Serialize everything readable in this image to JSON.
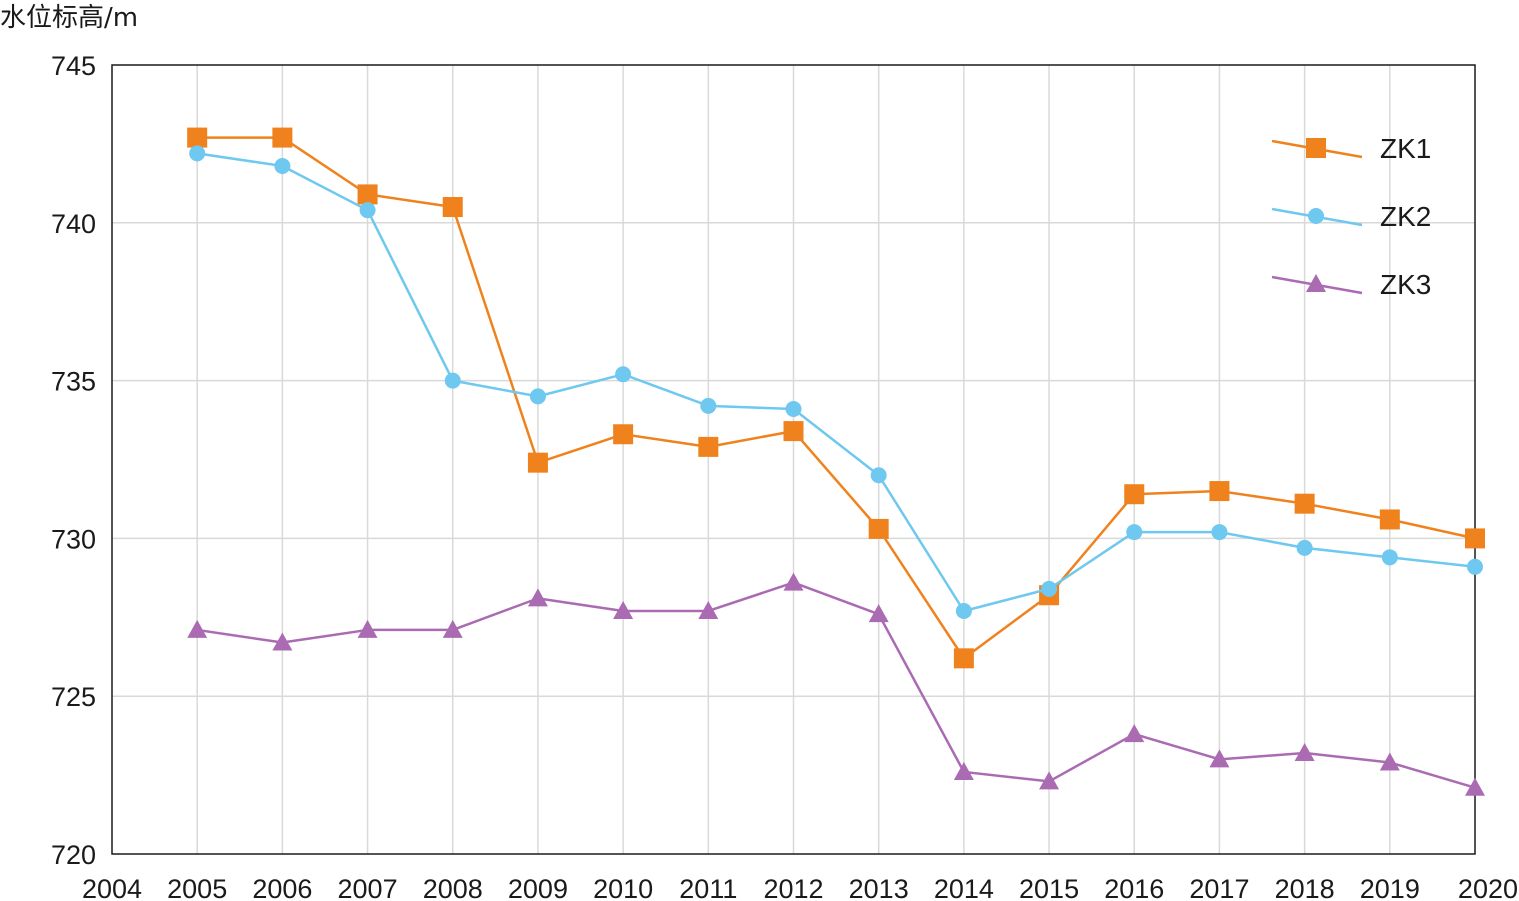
{
  "chart_data": {
    "type": "line",
    "ylabel": "水位标高/m",
    "xlim": [
      2004,
      2020
    ],
    "ylim": [
      720,
      745
    ],
    "x_ticks": [
      2004,
      2005,
      2006,
      2007,
      2008,
      2009,
      2010,
      2011,
      2012,
      2013,
      2014,
      2015,
      2016,
      2017,
      2018,
      2019,
      2020
    ],
    "y_ticks": [
      720,
      725,
      730,
      735,
      740,
      745
    ],
    "grid": true,
    "legend_position": "top-right",
    "x": [
      2005,
      2006,
      2007,
      2008,
      2009,
      2010,
      2011,
      2012,
      2013,
      2014,
      2015,
      2016,
      2017,
      2018,
      2019,
      2020
    ],
    "series": [
      {
        "name": "ZK1",
        "color": "#f0821e",
        "marker": "square",
        "values": [
          742.7,
          742.7,
          740.9,
          740.5,
          732.4,
          733.3,
          732.9,
          733.4,
          730.3,
          726.2,
          728.2,
          731.4,
          731.5,
          731.1,
          730.6,
          730.0
        ]
      },
      {
        "name": "ZK2",
        "color": "#6ec8ef",
        "marker": "circle",
        "values": [
          742.2,
          741.8,
          740.4,
          735.0,
          734.5,
          735.2,
          734.2,
          734.1,
          732.0,
          727.7,
          728.4,
          730.2,
          730.2,
          729.7,
          729.4,
          729.1
        ]
      },
      {
        "name": "ZK3",
        "color": "#ab6bb3",
        "marker": "triangle",
        "values": [
          727.1,
          726.7,
          727.1,
          727.1,
          728.1,
          727.7,
          727.7,
          728.6,
          727.6,
          722.6,
          722.3,
          723.8,
          723.0,
          723.2,
          722.9,
          722.1
        ]
      }
    ]
  }
}
